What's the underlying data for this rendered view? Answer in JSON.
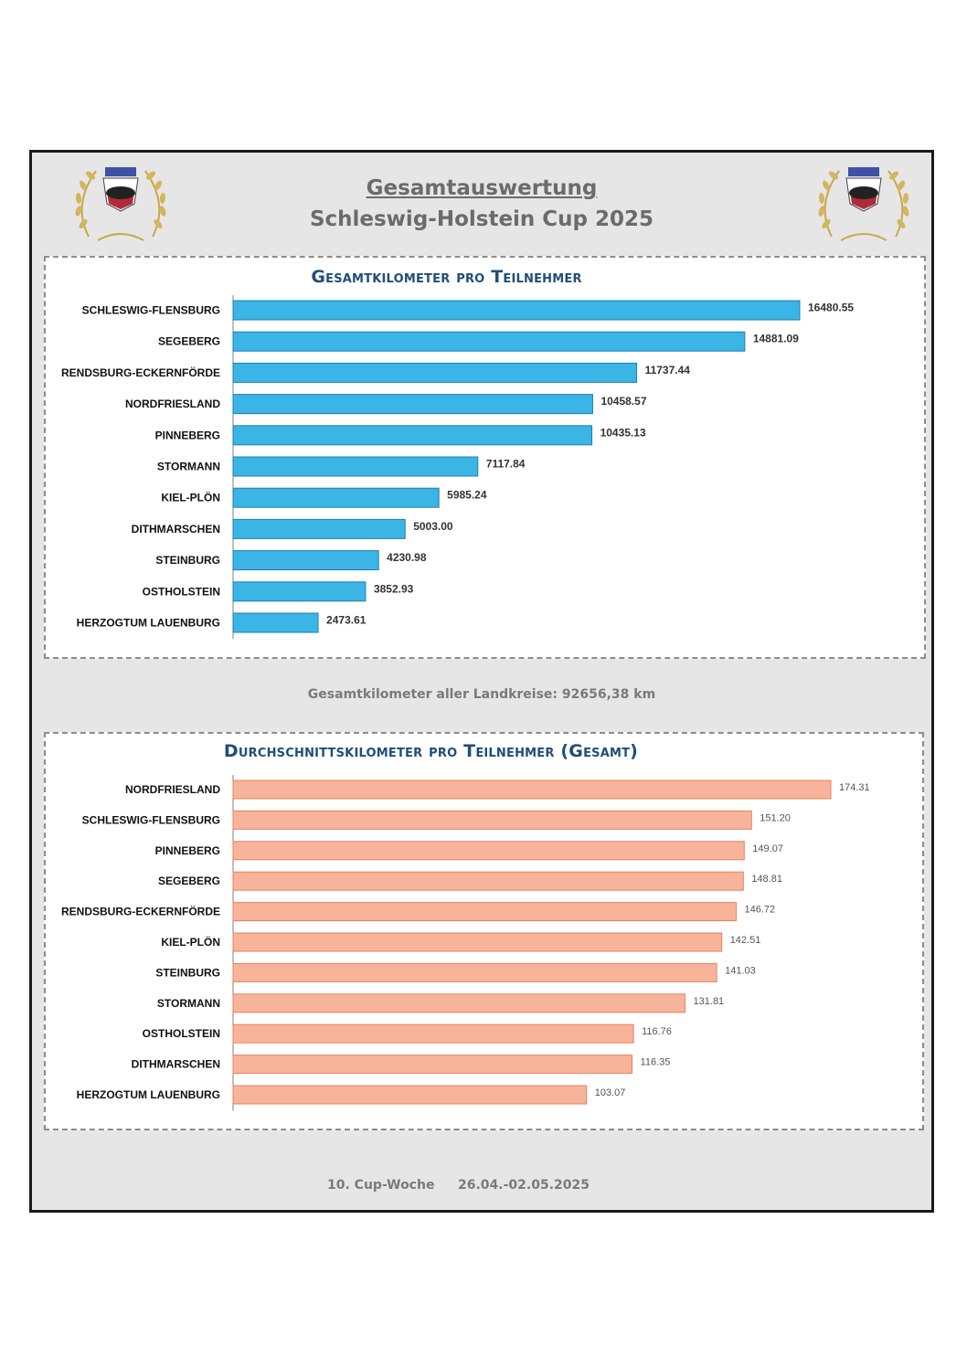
{
  "header": {
    "title": "Gesamtauswertung",
    "subtitle": "Schleswig-Holstein Cup 2025"
  },
  "summary": {
    "text": "Gesamtkilometer aller Landkreise:  92656,38 km"
  },
  "footer": {
    "week": "10. Cup-Woche",
    "date_range": "26.04.-02.05.2025"
  },
  "colors": {
    "bar_blue": "#3bb4e6",
    "bar_blue_stroke": "#1f7fb0",
    "bar_salmon": "#f8b49a",
    "bar_salmon_stroke": "#e6825f",
    "title_blue": "#1f4e79"
  },
  "chart_data": [
    {
      "type": "bar",
      "orientation": "horizontal",
      "title": "Gesamtkilometer pro Teilnehmer",
      "xlim": [
        0,
        18000
      ],
      "categories": [
        "SCHLESWIG-FLENSBURG",
        "SEGEBERG",
        "RENDSBURG-ECKERNFÖRDE",
        "NORDFRIESLAND",
        "PINNEBERG",
        "STORMANN",
        "KIEL-PLÖN",
        "DITHMARSCHEN",
        "STEINBURG",
        "OSTHOLSTEIN",
        "HERZOGTUM LAUENBURG"
      ],
      "values": [
        16480.55,
        14881.09,
        11737.44,
        10458.57,
        10435.13,
        7117.84,
        5985.24,
        5003.0,
        4230.98,
        3852.93,
        2473.61
      ],
      "labels": [
        "16480.55",
        "14881.09",
        "11737.44",
        "10458.57",
        "10435.13",
        "7117.84",
        "5985.24",
        "5003.00",
        "4230.98",
        "3852.93",
        "2473.61"
      ]
    },
    {
      "type": "bar",
      "orientation": "horizontal",
      "title": "Durchschnittskilometer pro Teilnehmer (Gesamt)",
      "xlim": [
        0,
        195
      ],
      "categories": [
        "NORDFRIESLAND",
        "SCHLESWIG-FLENSBURG",
        "PINNEBERG",
        "SEGEBERG",
        "RENDSBURG-ECKERNFÖRDE",
        "KIEL-PLÖN",
        "STEINBURG",
        "STORMANN",
        "OSTHOLSTEIN",
        "DITHMARSCHEN",
        "HERZOGTUM LAUENBURG"
      ],
      "values": [
        174.31,
        151.2,
        149.07,
        148.81,
        146.72,
        142.51,
        141.03,
        131.81,
        116.76,
        116.35,
        103.07
      ],
      "labels": [
        "174.31",
        "151.20",
        "149.07",
        "148.81",
        "146.72",
        "142.51",
        "141.03",
        "131.81",
        "116.76",
        "116.35",
        "103.07"
      ]
    }
  ]
}
